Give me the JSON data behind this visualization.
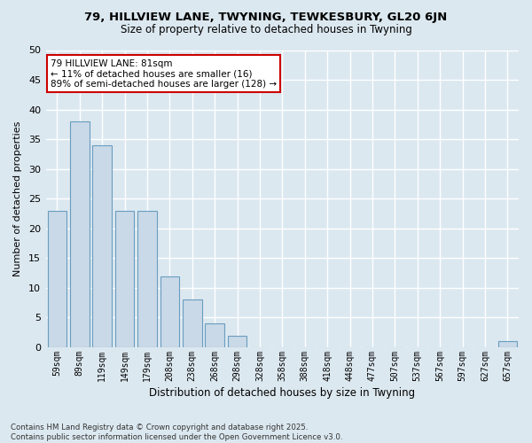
{
  "title1": "79, HILLVIEW LANE, TWYNING, TEWKESBURY, GL20 6JN",
  "title2": "Size of property relative to detached houses in Twyning",
  "xlabel": "Distribution of detached houses by size in Twyning",
  "ylabel": "Number of detached properties",
  "footer1": "Contains HM Land Registry data © Crown copyright and database right 2025.",
  "footer2": "Contains public sector information licensed under the Open Government Licence v3.0.",
  "categories": [
    "59sqm",
    "89sqm",
    "119sqm",
    "149sqm",
    "179sqm",
    "208sqm",
    "238sqm",
    "268sqm",
    "298sqm",
    "328sqm",
    "358sqm",
    "388sqm",
    "418sqm",
    "448sqm",
    "477sqm",
    "507sqm",
    "537sqm",
    "567sqm",
    "597sqm",
    "627sqm",
    "657sqm"
  ],
  "values": [
    23,
    38,
    34,
    23,
    23,
    12,
    8,
    4,
    2,
    0,
    0,
    0,
    0,
    0,
    0,
    0,
    0,
    0,
    0,
    0,
    1
  ],
  "bar_color": "#c9d9e8",
  "bar_edge_color": "#6a9dbf",
  "annotation_line1": "79 HILLVIEW LANE: 81sqm",
  "annotation_line2": "← 11% of detached houses are smaller (16)",
  "annotation_line3": "89% of semi-detached houses are larger (128) →",
  "annotation_box_color": "#ffffff",
  "annotation_box_edge_color": "#cc0000",
  "bg_color": "#dce8f0",
  "grid_color": "#ffffff",
  "ylim": [
    0,
    50
  ],
  "yticks": [
    0,
    5,
    10,
    15,
    20,
    25,
    30,
    35,
    40,
    45,
    50
  ]
}
